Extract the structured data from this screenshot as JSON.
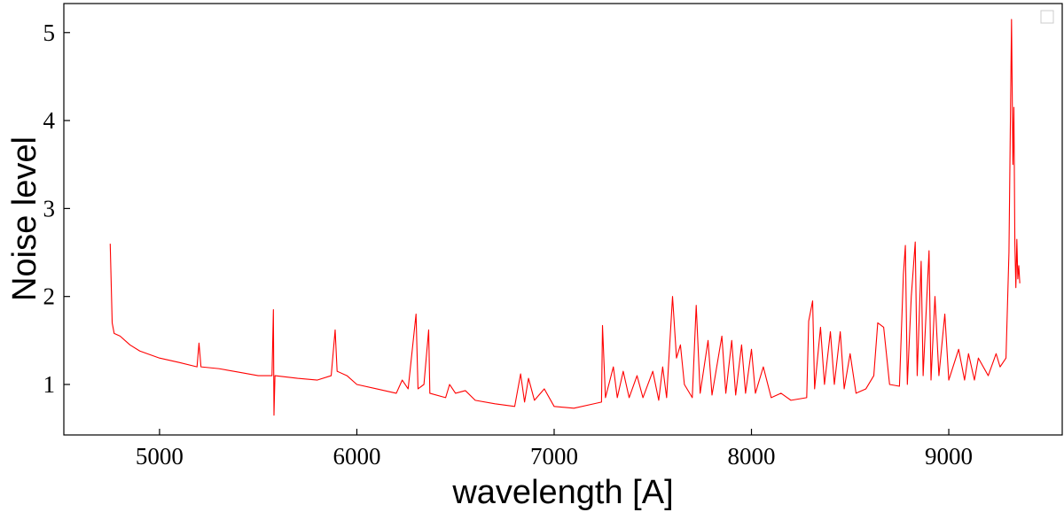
{
  "chart_data": {
    "type": "line",
    "xlabel": "wavelength [A]",
    "ylabel": "Noise level",
    "color": "#ff0000",
    "xlim": [
      4515,
      9575
    ],
    "ylim": [
      0.426,
      5.33
    ],
    "xticks": [
      5000,
      6000,
      7000,
      8000,
      9000
    ],
    "yticks": [
      1,
      2,
      3,
      4,
      5
    ],
    "grid": false,
    "x": [
      4750,
      4760,
      4770,
      4800,
      4850,
      4900,
      5000,
      5100,
      5190,
      5200,
      5210,
      5300,
      5400,
      5500,
      5570,
      5577,
      5580,
      5585,
      5700,
      5800,
      5870,
      5890,
      5900,
      5950,
      6000,
      6100,
      6200,
      6230,
      6260,
      6300,
      6310,
      6340,
      6364,
      6370,
      6450,
      6470,
      6500,
      6550,
      6600,
      6700,
      6800,
      6830,
      6850,
      6870,
      6900,
      6950,
      7000,
      7100,
      7200,
      7240,
      7245,
      7260,
      7300,
      7320,
      7350,
      7380,
      7420,
      7450,
      7500,
      7530,
      7550,
      7570,
      7600,
      7620,
      7640,
      7660,
      7700,
      7720,
      7740,
      7780,
      7800,
      7850,
      7870,
      7900,
      7920,
      7950,
      7970,
      8000,
      8020,
      8060,
      8100,
      8150,
      8200,
      8280,
      8290,
      8310,
      8320,
      8350,
      8370,
      8400,
      8420,
      8450,
      8470,
      8500,
      8530,
      8580,
      8620,
      8640,
      8670,
      8700,
      8750,
      8770,
      8780,
      8790,
      8810,
      8830,
      8840,
      8860,
      8870,
      8900,
      8910,
      8930,
      8950,
      8980,
      9000,
      9050,
      9080,
      9100,
      9130,
      9150,
      9200,
      9240,
      9260,
      9290,
      9305,
      9318,
      9325,
      9330,
      9335,
      9340,
      9345,
      9350,
      9355,
      9360
    ],
    "values": [
      2.6,
      1.7,
      1.58,
      1.55,
      1.45,
      1.38,
      1.3,
      1.25,
      1.2,
      1.47,
      1.2,
      1.18,
      1.14,
      1.1,
      1.1,
      1.85,
      0.65,
      1.1,
      1.07,
      1.05,
      1.1,
      1.62,
      1.15,
      1.1,
      1.0,
      0.95,
      0.9,
      1.05,
      0.95,
      1.8,
      0.95,
      1.0,
      1.62,
      0.9,
      0.85,
      1.0,
      0.9,
      0.93,
      0.82,
      0.78,
      0.75,
      1.12,
      0.8,
      1.07,
      0.82,
      0.95,
      0.75,
      0.73,
      0.78,
      0.8,
      1.67,
      0.85,
      1.2,
      0.85,
      1.15,
      0.85,
      1.1,
      0.85,
      1.15,
      0.82,
      1.2,
      0.85,
      2.0,
      1.3,
      1.45,
      1.0,
      0.85,
      1.9,
      0.9,
      1.5,
      0.88,
      1.55,
      0.9,
      1.5,
      0.88,
      1.45,
      0.9,
      1.4,
      0.9,
      1.2,
      0.85,
      0.9,
      0.82,
      0.85,
      1.72,
      1.95,
      0.95,
      1.65,
      1.0,
      1.6,
      1.0,
      1.6,
      0.95,
      1.35,
      0.9,
      0.95,
      1.1,
      1.7,
      1.65,
      1.0,
      0.98,
      2.25,
      2.58,
      1.0,
      2.0,
      2.62,
      1.1,
      2.4,
      1.1,
      2.52,
      1.05,
      2.0,
      1.1,
      1.8,
      1.05,
      1.4,
      1.05,
      1.35,
      1.05,
      1.3,
      1.1,
      1.35,
      1.2,
      1.3,
      2.5,
      5.15,
      3.5,
      4.15,
      2.6,
      2.1,
      2.65,
      2.2,
      2.35,
      2.15
    ]
  }
}
